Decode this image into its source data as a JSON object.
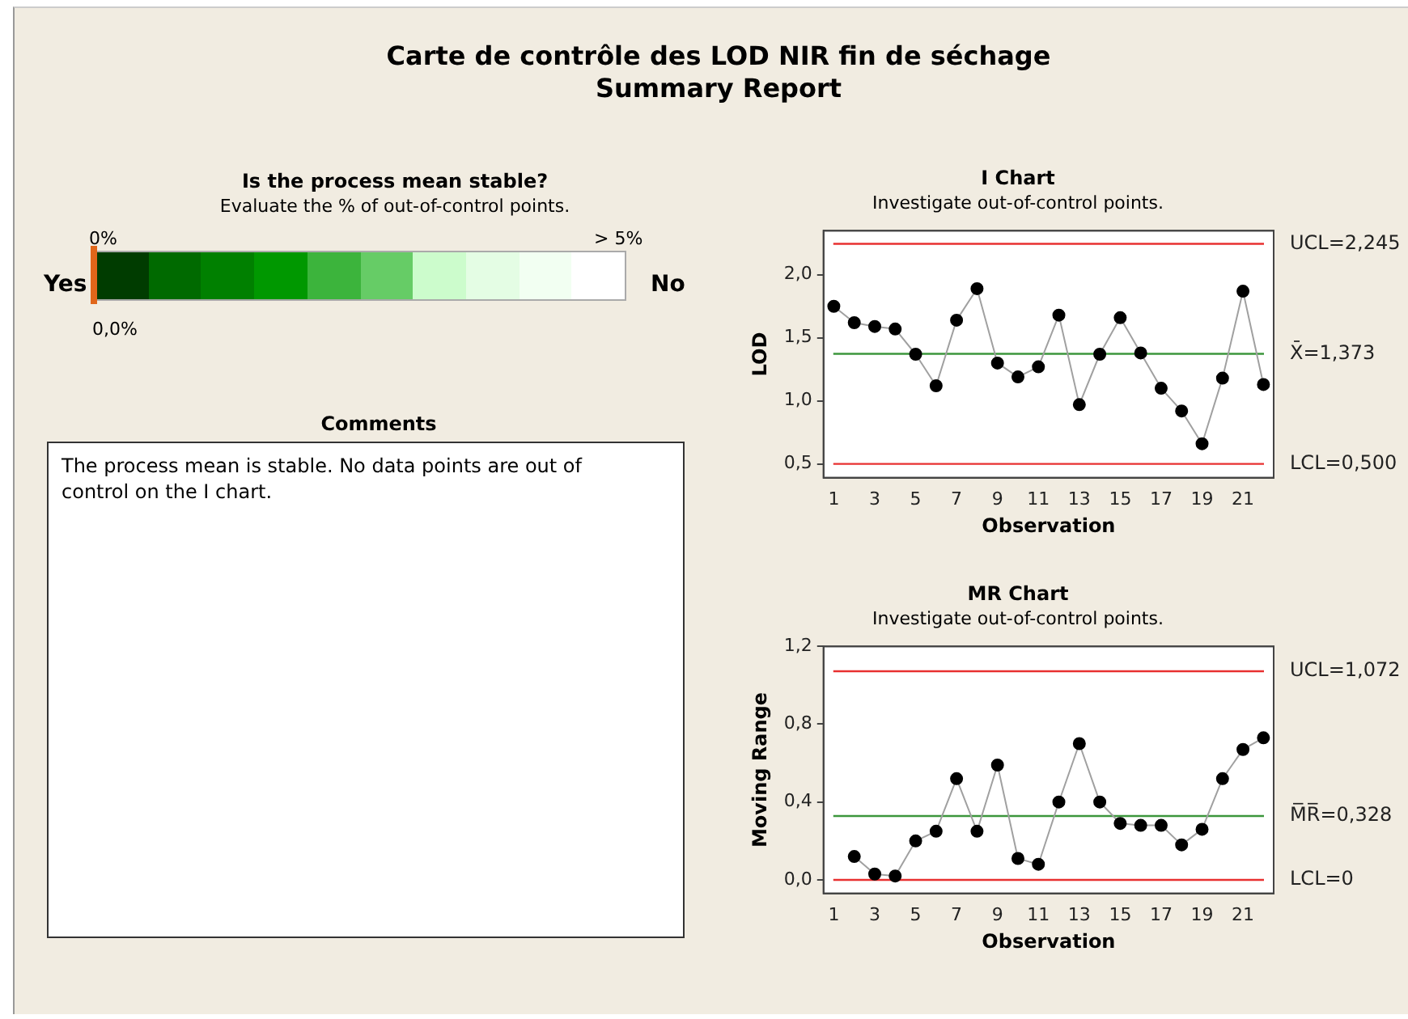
{
  "chart_data": [
    {
      "type": "other",
      "title": "Carte de contrôle des LOD NIR fin de séchage",
      "subtitle": "Summary Report"
    },
    {
      "type": "other",
      "title": "Is the process mean stable?",
      "subtitle": "Evaluate the % of out-of-control points.",
      "annotations": [
        "0%",
        "> 5%",
        "Yes",
        "No",
        "0,0%"
      ]
    },
    {
      "type": "other",
      "title": "Comments",
      "annotations": [
        "The process mean is stable. No data points are out of control on the I chart."
      ]
    },
    {
      "type": "line",
      "title": "I Chart",
      "subtitle": "Investigate out-of-control points.",
      "xlabel": "Observation",
      "ylabel": "LOD",
      "x": [
        1,
        2,
        3,
        4,
        5,
        6,
        7,
        8,
        9,
        10,
        11,
        12,
        13,
        14,
        15,
        16,
        17,
        18,
        19,
        20,
        21,
        22
      ],
      "series": [
        {
          "color": "#000000",
          "values": [
            1.75,
            1.62,
            1.59,
            1.57,
            1.37,
            1.12,
            1.64,
            1.89,
            1.3,
            1.19,
            1.27,
            1.68,
            0.97,
            1.37,
            1.66,
            1.38,
            1.1,
            0.92,
            0.66,
            1.18,
            1.87,
            1.13
          ]
        }
      ],
      "xlim": [
        0.5,
        22.5
      ],
      "xticks": [
        1,
        3,
        5,
        7,
        9,
        11,
        13,
        15,
        17,
        19,
        21
      ],
      "ylim": [
        0.39,
        2.35
      ],
      "yticks": [
        {
          "value": 0.5,
          "label": "0,5"
        },
        {
          "value": 1.0,
          "label": "1,0"
        },
        {
          "value": 1.5,
          "label": "1,5"
        },
        {
          "value": 2.0,
          "label": "2,0"
        }
      ],
      "ref_lines": [
        {
          "axis": "y",
          "value": 2.245,
          "label": "UCL=2,245",
          "color": "#e83030"
        },
        {
          "axis": "y",
          "value": 1.373,
          "label": "X̄=1,373",
          "color": "#3c963c"
        },
        {
          "axis": "y",
          "value": 0.5,
          "label": "LCL=0,500",
          "color": "#e83030"
        }
      ],
      "grid": false,
      "legend": false,
      "marker": "circle",
      "line_style": "solid"
    },
    {
      "type": "line",
      "title": "MR Chart",
      "subtitle": "Investigate out-of-control points.",
      "xlabel": "Observation",
      "ylabel": "Moving Range",
      "series": [
        {
          "color": "#000000",
          "x": [
            2,
            3,
            4,
            5,
            6,
            7,
            8,
            9,
            10,
            11,
            12,
            13,
            14,
            15,
            16,
            17,
            18,
            19,
            20,
            21,
            22
          ],
          "values": [
            0.12,
            0.03,
            0.02,
            0.2,
            0.25,
            0.52,
            0.25,
            0.59,
            0.11,
            0.08,
            0.4,
            0.7,
            0.4,
            0.29,
            0.28,
            0.28,
            0.18,
            0.26,
            0.52,
            0.67,
            0.73
          ]
        }
      ],
      "xlim": [
        0.5,
        22.5
      ],
      "xticks": [
        1,
        3,
        5,
        7,
        9,
        11,
        13,
        15,
        17,
        19,
        21
      ],
      "ylim": [
        -0.07,
        1.2
      ],
      "yticks": [
        {
          "value": 0,
          "label": "0,0"
        },
        {
          "value": 0.4,
          "label": "0,4"
        },
        {
          "value": 0.8,
          "label": "0,8"
        },
        {
          "value": 1.2,
          "label": "1,2"
        }
      ],
      "ref_lines": [
        {
          "axis": "y",
          "value": 1.072,
          "label": "UCL=1,072",
          "color": "#e83030"
        },
        {
          "axis": "y",
          "value": 0.328,
          "label": "M̅R̅=0,328",
          "color": "#3c963c"
        },
        {
          "axis": "y",
          "value": 0,
          "label": "LCL=0",
          "color": "#e83030"
        }
      ],
      "grid": false,
      "legend": false,
      "marker": "circle",
      "line_style": "solid"
    }
  ]
}
